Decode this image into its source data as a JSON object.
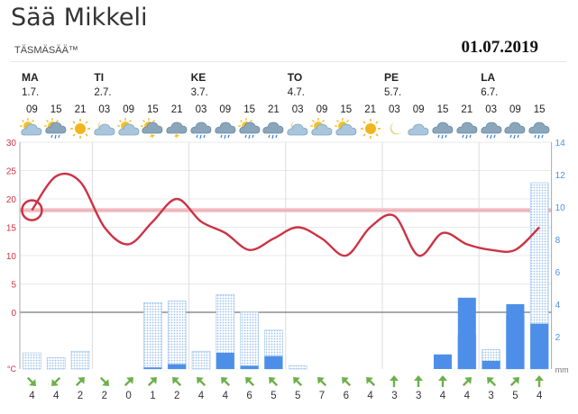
{
  "header": {
    "title": "Sää Mikkeli",
    "subtitle": "TÄSMÄSÄÄ™",
    "date": "01.07.2019"
  },
  "days": [
    {
      "name": "MA",
      "date": "1.7."
    },
    {
      "name": "TI",
      "date": "2.7."
    },
    {
      "name": "KE",
      "date": "3.7."
    },
    {
      "name": "TO",
      "date": "4.7."
    },
    {
      "name": "PE",
      "date": "5.7."
    },
    {
      "name": "LA",
      "date": "6.7."
    }
  ],
  "hours": [
    "09",
    "15",
    "21",
    "03",
    "09",
    "15",
    "21",
    "03",
    "09",
    "15",
    "21",
    "03",
    "09",
    "15",
    "21",
    "03",
    "09",
    "15",
    "21",
    "03",
    "09",
    "15"
  ],
  "icons": [
    "partly-cloudy-icon",
    "sun-cloud-rain-icon",
    "sun-icon",
    "moon-cloud-icon",
    "partly-cloudy-icon",
    "sun-thunder-icon",
    "thunder-cloud-icon",
    "rain-cloud-icon",
    "rain-cloud-icon",
    "sun-cloud-rain-icon",
    "rain-cloud-icon",
    "moon-cloud-icon",
    "partly-cloudy-icon",
    "partly-cloudy-icon",
    "sun-icon",
    "moon-icon",
    "cloud-icon",
    "rain-cloud-icon",
    "rain-cloud-icon",
    "rain-cloud-icon",
    "rain-cloud-icon",
    "rain-cloud-icon"
  ],
  "wind": {
    "speeds": [
      "4",
      "4",
      "2",
      "2",
      "0",
      "1",
      "2",
      "4",
      "4",
      "6",
      "5",
      "5",
      "7",
      "6",
      "4",
      "3",
      "3",
      "4",
      "4",
      "3",
      "5",
      "4"
    ],
    "directions_deg": [
      135,
      225,
      45,
      135,
      45,
      45,
      315,
      315,
      315,
      315,
      315,
      315,
      315,
      315,
      315,
      0,
      0,
      0,
      45,
      315,
      45,
      0
    ]
  },
  "colors": {
    "temperature": "#cc3344",
    "precip_observed": "#4d8fe8",
    "precip_probable": "#9ec4ee",
    "wind_arrow": "#6cb04a",
    "threshold_band": "#f4c8cc",
    "left_axis": "#cc3344",
    "right_axis": "#4d8fe8"
  },
  "chart_data": {
    "type": "line",
    "x": [
      "09",
      "15",
      "21",
      "03",
      "09",
      "15",
      "21",
      "03",
      "09",
      "15",
      "21",
      "03",
      "09",
      "15",
      "21",
      "03",
      "09",
      "15",
      "21",
      "03",
      "09",
      "15"
    ],
    "series": [
      {
        "values": [
          18,
          24,
          23,
          15,
          12,
          16,
          20,
          16,
          14,
          11,
          13,
          15,
          13,
          10,
          15,
          17,
          10,
          14,
          12,
          11,
          11,
          15
        ]
      }
    ],
    "precipitation": {
      "probable": [
        1,
        0.7,
        1.1,
        0,
        0,
        4.1,
        4.2,
        1.1,
        4.6,
        3.5,
        2.4,
        0.2,
        0,
        0,
        0,
        0,
        0,
        0,
        2.1,
        1.2,
        3.3,
        11.5
      ],
      "observed": [
        0,
        0,
        0,
        0,
        0,
        0.1,
        0.3,
        0,
        1,
        0.2,
        0.8,
        0,
        0,
        0,
        0,
        0,
        0,
        0.9,
        4.4,
        0.5,
        4,
        2.8
      ]
    },
    "ylim": [
      -10,
      30
    ],
    "yticks": [
      30,
      25,
      20,
      15,
      10,
      5,
      0
    ],
    "y_unit": "°C",
    "y2lim": [
      0,
      14
    ],
    "y2ticks": [
      14,
      12,
      10,
      8,
      6,
      4,
      2
    ],
    "y2_unit": "mm",
    "threshold": 18,
    "highlight_value": 18,
    "grid": true
  }
}
